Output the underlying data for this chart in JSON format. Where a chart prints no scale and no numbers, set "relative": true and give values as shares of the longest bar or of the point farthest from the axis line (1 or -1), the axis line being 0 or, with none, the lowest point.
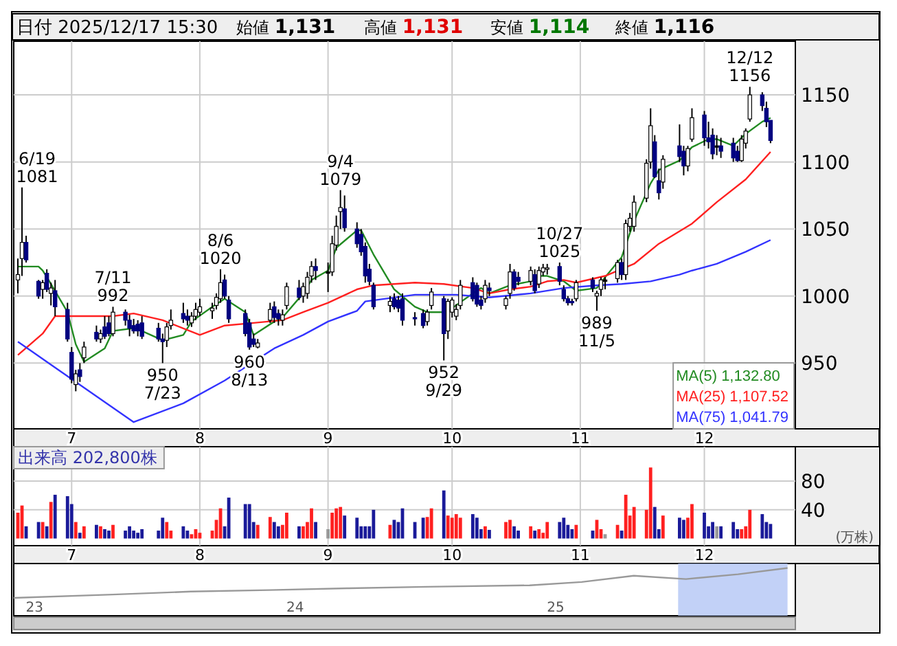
{
  "chart_data": [
    {
      "type": "candlestick",
      "title": "日付 2025/12/17 15:30",
      "annotations": [
        "始値 1,131",
        "高値 1,131",
        "安値 1,114",
        "終値 1,116",
        {
          "text": "6/19\n1081",
          "x": "2025-06-19",
          "y": 1081
        },
        {
          "text": "7/11\n992",
          "x": "2025-07-11",
          "y": 992
        },
        {
          "text": "950\n7/23",
          "x": "2025-07-23",
          "y": 950
        },
        {
          "text": "8/6\n1020",
          "x": "2025-08-06",
          "y": 1020
        },
        {
          "text": "960\n8/13",
          "x": "2025-08-13",
          "y": 960
        },
        {
          "text": "9/4\n1079",
          "x": "2025-09-04",
          "y": 1079
        },
        {
          "text": "952\n9/29",
          "x": "2025-09-29",
          "y": 952
        },
        {
          "text": "10/27\n1025",
          "x": "2025-10-27",
          "y": 1025
        },
        {
          "text": "989\n11/5",
          "x": "2025-11-05",
          "y": 989
        },
        {
          "text": "12/12\n1156",
          "x": "2025-12-12",
          "y": 1156
        }
      ],
      "x": [
        "2025-06-18",
        "2025-06-19",
        "2025-06-20",
        "2025-06-23",
        "2025-06-24",
        "2025-06-25",
        "2025-06-26",
        "2025-06-27",
        "2025-06-30",
        "2025-07-01",
        "2025-07-02",
        "2025-07-03",
        "2025-07-04",
        "2025-07-07",
        "2025-07-08",
        "2025-07-09",
        "2025-07-10",
        "2025-07-11",
        "2025-07-14",
        "2025-07-15",
        "2025-07-16",
        "2025-07-17",
        "2025-07-18",
        "2025-07-22",
        "2025-07-23",
        "2025-07-24",
        "2025-07-25",
        "2025-07-28",
        "2025-07-29",
        "2025-07-30",
        "2025-07-31",
        "2025-08-01",
        "2025-08-04",
        "2025-08-05",
        "2025-08-06",
        "2025-08-07",
        "2025-08-08",
        "2025-08-12",
        "2025-08-13",
        "2025-08-14",
        "2025-08-15",
        "2025-08-18",
        "2025-08-19",
        "2025-08-20",
        "2025-08-21",
        "2025-08-22",
        "2025-08-25",
        "2025-08-26",
        "2025-08-27",
        "2025-08-28",
        "2025-08-29",
        "2025-09-01",
        "2025-09-02",
        "2025-09-03",
        "2025-09-04",
        "2025-09-05",
        "2025-09-08",
        "2025-09-09",
        "2025-09-10",
        "2025-09-11",
        "2025-09-12",
        "2025-09-16",
        "2025-09-17",
        "2025-09-18",
        "2025-09-19",
        "2025-09-22",
        "2025-09-24",
        "2025-09-25",
        "2025-09-26",
        "2025-09-29",
        "2025-09-30",
        "2025-10-01",
        "2025-10-02",
        "2025-10-03",
        "2025-10-06",
        "2025-10-07",
        "2025-10-08",
        "2025-10-09",
        "2025-10-10",
        "2025-10-14",
        "2025-10-15",
        "2025-10-16",
        "2025-10-17",
        "2025-10-20",
        "2025-10-21",
        "2025-10-22",
        "2025-10-23",
        "2025-10-24",
        "2025-10-27",
        "2025-10-28",
        "2025-10-29",
        "2025-10-30",
        "2025-10-31",
        "2025-11-04",
        "2025-11-05",
        "2025-11-06",
        "2025-11-07",
        "2025-11-10",
        "2025-11-11",
        "2025-11-12",
        "2025-11-13",
        "2025-11-14",
        "2025-11-17",
        "2025-11-18",
        "2025-11-19",
        "2025-11-20",
        "2025-11-21",
        "2025-11-25",
        "2025-11-26",
        "2025-11-27",
        "2025-11-28",
        "2025-12-01",
        "2025-12-02",
        "2025-12-03",
        "2025-12-04",
        "2025-12-05",
        "2025-12-08",
        "2025-12-09",
        "2025-12-10",
        "2025-12-11",
        "2025-12-12",
        "2025-12-15",
        "2025-12-16",
        "2025-12-17"
      ],
      "ohlc": [
        [
          1012,
          1028,
          1002,
          1016
        ],
        [
          1028,
          1081,
          1015,
          1040
        ],
        [
          1040,
          1045,
          1025,
          1027
        ],
        [
          1011,
          1012,
          998,
          1000
        ],
        [
          1005,
          1012,
          998,
          1010
        ],
        [
          1017,
          1020,
          1003,
          1005
        ],
        [
          1002,
          1010,
          993,
          1006
        ],
        [
          1004,
          1012,
          985,
          992
        ],
        [
          990,
          995,
          966,
          968
        ],
        [
          958,
          962,
          935,
          938
        ],
        [
          934,
          945,
          929,
          942
        ],
        [
          945,
          950,
          936,
          940
        ],
        [
          954,
          966,
          950,
          962
        ],
        [
          973,
          978,
          966,
          968
        ],
        [
          968,
          975,
          965,
          972
        ],
        [
          977,
          985,
          968,
          970
        ],
        [
          980,
          985,
          970,
          972
        ],
        [
          972,
          992,
          970,
          988
        ],
        [
          988,
          990,
          978,
          982
        ],
        [
          982,
          986,
          970,
          976
        ],
        [
          978,
          983,
          972,
          974
        ],
        [
          979,
          982,
          970,
          974
        ],
        [
          980,
          985,
          968,
          970
        ],
        [
          976,
          980,
          966,
          968
        ],
        [
          968,
          972,
          950,
          966
        ],
        [
          967,
          980,
          962,
          977
        ],
        [
          978,
          990,
          975,
          982
        ],
        [
          987,
          995,
          980,
          983
        ],
        [
          985,
          990,
          978,
          982
        ],
        [
          980,
          988,
          977,
          985
        ],
        [
          985,
          995,
          982,
          990
        ],
        [
          988,
          998,
          985,
          992
        ],
        [
          989,
          995,
          983,
          991
        ],
        [
          993,
          1002,
          990,
          999
        ],
        [
          998,
          1020,
          995,
          1010
        ],
        [
          1012,
          1016,
          998,
          1000
        ],
        [
          997,
          1000,
          980,
          983
        ],
        [
          987,
          990,
          970,
          972
        ],
        [
          980,
          983,
          960,
          962
        ],
        [
          968,
          972,
          962,
          964
        ],
        [
          962,
          968,
          961,
          965
        ],
        [
          982,
          995,
          980,
          990
        ],
        [
          992,
          996,
          980,
          984
        ],
        [
          987,
          990,
          978,
          983
        ],
        [
          982,
          990,
          978,
          986
        ],
        [
          993,
          1010,
          990,
          1007
        ],
        [
          1006,
          1012,
          997,
          999
        ],
        [
          1000,
          1010,
          995,
          1007
        ],
        [
          1002,
          1018,
          998,
          1014
        ],
        [
          1015,
          1026,
          1010,
          1022
        ],
        [
          1022,
          1028,
          1012,
          1019
        ],
        [
          1018,
          1025,
          1003,
          1018
        ],
        [
          1018,
          1045,
          1015,
          1039
        ],
        [
          1038,
          1060,
          1034,
          1052
        ],
        [
          1063,
          1079,
          1050,
          1066
        ],
        [
          1065,
          1075,
          1048,
          1051
        ],
        [
          1050,
          1055,
          1036,
          1039
        ],
        [
          1046,
          1050,
          1030,
          1033
        ],
        [
          1037,
          1040,
          1010,
          1015
        ],
        [
          1020,
          1024,
          1008,
          1011
        ],
        [
          1008,
          1010,
          990,
          992
        ],
        [
          993,
          1000,
          988,
          996
        ],
        [
          998,
          1002,
          990,
          992
        ],
        [
          997,
          1000,
          988,
          991
        ],
        [
          998,
          1002,
          978,
          982
        ],
        [
          984,
          988,
          978,
          983
        ],
        [
          987,
          990,
          976,
          978
        ],
        [
          981,
          990,
          978,
          988
        ],
        [
          993,
          1006,
          990,
          1003
        ],
        [
          998,
          1000,
          952,
          972
        ],
        [
          974,
          998,
          968,
          996
        ],
        [
          988,
          999,
          984,
          997
        ],
        [
          985,
          994,
          982,
          990
        ],
        [
          993,
          1012,
          990,
          1008
        ],
        [
          1010,
          1014,
          996,
          998
        ],
        [
          1008,
          1010,
          992,
          994
        ],
        [
          997,
          1000,
          990,
          993
        ],
        [
          998,
          1012,
          995,
          1008
        ],
        [
          1006,
          1010,
          1000,
          1004
        ],
        [
          993,
          1000,
          990,
          998
        ],
        [
          1002,
          1024,
          998,
          1018
        ],
        [
          1018,
          1020,
          1004,
          1006
        ],
        [
          1014,
          1018,
          1008,
          1011
        ],
        [
          1011,
          1022,
          1008,
          1019
        ],
        [
          1016,
          1020,
          1002,
          1004
        ],
        [
          1009,
          1022,
          1006,
          1019
        ],
        [
          1018,
          1024,
          1015,
          1021
        ],
        [
          1020,
          1024,
          1016,
          1021
        ],
        [
          1022,
          1025,
          1008,
          1011
        ],
        [
          1005,
          1008,
          996,
          998
        ],
        [
          998,
          1000,
          993,
          995
        ],
        [
          996,
          998,
          993,
          995
        ],
        [
          998,
          1012,
          996,
          1010
        ],
        [
          1012,
          1014,
          1003,
          1006
        ],
        [
          1000,
          1004,
          989,
          1002
        ],
        [
          1005,
          1014,
          1000,
          1012
        ],
        [
          1012,
          1014,
          1005,
          1012
        ],
        [
          1013,
          1027,
          1010,
          1025
        ],
        [
          1025,
          1028,
          1012,
          1016
        ],
        [
          1016,
          1057,
          1012,
          1054
        ],
        [
          1052,
          1062,
          1048,
          1058
        ],
        [
          1052,
          1075,
          1048,
          1070
        ],
        [
          1073,
          1102,
          1070,
          1099
        ],
        [
          1100,
          1140,
          1095,
          1127
        ],
        [
          1115,
          1120,
          1088,
          1089
        ],
        [
          1086,
          1095,
          1072,
          1077
        ],
        [
          1085,
          1105,
          1080,
          1102
        ],
        [
          1112,
          1128,
          1100,
          1104
        ],
        [
          1108,
          1112,
          1090,
          1097
        ],
        [
          1097,
          1112,
          1093,
          1110
        ],
        [
          1117,
          1140,
          1115,
          1133
        ],
        [
          1135,
          1138,
          1112,
          1118
        ],
        [
          1118,
          1130,
          1110,
          1115
        ],
        [
          1120,
          1125,
          1102,
          1106
        ],
        [
          1112,
          1120,
          1105,
          1112
        ],
        [
          1112,
          1118,
          1103,
          1108
        ],
        [
          1114,
          1118,
          1100,
          1103
        ],
        [
          1108,
          1112,
          1100,
          1101
        ],
        [
          1101,
          1120,
          1100,
          1117
        ],
        [
          1114,
          1125,
          1110,
          1123
        ],
        [
          1132,
          1156,
          1130,
          1150
        ],
        [
          1150,
          1152,
          1138,
          1142
        ],
        [
          1140,
          1145,
          1126,
          1130
        ],
        [
          1131,
          1131,
          1114,
          1116
        ]
      ],
      "series": [
        {
          "type": "line",
          "name": "MA(5) 1,132.80",
          "color": "#228b22",
          "x": [
            "2025-06-18",
            "2025-06-23",
            "2025-06-24",
            "2025-06-26",
            "2025-06-30",
            "2025-07-02",
            "2025-07-04",
            "2025-07-09",
            "2025-07-11",
            "2025-07-16",
            "2025-07-18",
            "2025-07-23",
            "2025-07-28",
            "2025-07-30",
            "2025-08-04",
            "2025-08-07",
            "2025-08-12",
            "2025-08-14",
            "2025-08-19",
            "2025-08-21",
            "2025-08-26",
            "2025-08-28",
            "2025-09-01",
            "2025-09-03",
            "2025-09-08",
            "2025-09-09",
            "2025-09-12",
            "2025-09-17",
            "2025-09-22",
            "2025-09-25",
            "2025-09-29",
            "2025-10-01",
            "2025-10-06",
            "2025-10-08",
            "2025-10-10",
            "2025-10-15",
            "2025-10-20",
            "2025-10-22",
            "2025-10-24",
            "2025-10-28",
            "2025-10-31",
            "2025-11-05",
            "2025-11-07",
            "2025-11-11",
            "2025-11-14",
            "2025-11-18",
            "2025-11-20",
            "2025-11-25",
            "2025-11-28",
            "2025-12-02",
            "2025-12-04",
            "2025-12-08",
            "2025-12-11",
            "2025-12-15",
            "2025-12-17"
          ],
          "values": [
            1022,
            1022,
            1019,
            1009,
            988,
            964,
            951,
            961,
            974,
            976,
            974,
            967,
            971,
            981,
            992,
            998,
            988,
            971,
            981,
            984,
            1002,
            1012,
            1019,
            1036,
            1049,
            1049,
            1031,
            1005,
            992,
            988,
            988,
            991,
            1002,
            1006,
            1002,
            1008,
            1011,
            1015,
            1015,
            1011,
            1004,
            1006,
            1014,
            1029,
            1056,
            1084,
            1094,
            1101,
            1111,
            1117,
            1117,
            1112,
            1121,
            1130,
            1132.8
          ]
        },
        {
          "type": "line",
          "name": "MA(25) 1,107.52",
          "color": "#ff2020",
          "x": [
            "2025-06-18",
            "2025-06-24",
            "2025-06-27",
            "2025-07-04",
            "2025-07-11",
            "2025-07-16",
            "2025-07-23",
            "2025-08-01",
            "2025-08-07",
            "2025-08-14",
            "2025-08-21",
            "2025-08-26",
            "2025-09-01",
            "2025-09-08",
            "2025-09-12",
            "2025-09-22",
            "2025-09-29",
            "2025-10-06",
            "2025-10-10",
            "2025-10-15",
            "2025-10-20",
            "2025-10-24",
            "2025-10-28",
            "2025-10-31",
            "2025-11-07",
            "2025-11-14",
            "2025-11-20",
            "2025-11-28",
            "2025-12-04",
            "2025-12-11",
            "2025-12-17"
          ],
          "values": [
            956,
            972,
            985,
            985,
            985,
            987,
            982,
            971,
            978,
            980,
            982,
            988,
            995,
            1005,
            1008,
            1010,
            1009,
            1006,
            1002,
            1005,
            1007,
            1011,
            1012,
            1010,
            1015,
            1024,
            1039,
            1054,
            1070,
            1087,
            1107.52
          ]
        },
        {
          "type": "line",
          "name": "MA(75) 1,041.79",
          "color": "#3333ff",
          "x": [
            "2025-06-18",
            "2025-06-25",
            "2025-07-16",
            "2025-07-28",
            "2025-08-07",
            "2025-08-19",
            "2025-08-26",
            "2025-09-01",
            "2025-09-08",
            "2025-09-10",
            "2025-09-22",
            "2025-10-02",
            "2025-10-10",
            "2025-10-20",
            "2025-10-28",
            "2025-11-05",
            "2025-11-11",
            "2025-11-18",
            "2025-11-25",
            "2025-11-28",
            "2025-12-04",
            "2025-12-11",
            "2025-12-17"
          ],
          "values": [
            966,
            951,
            906,
            920,
            937,
            961,
            971,
            981,
            989,
            996,
            1001,
            1001,
            999,
            1002,
            1006,
            1008,
            1009,
            1011,
            1016,
            1019,
            1024,
            1033,
            1041.79
          ]
        }
      ],
      "xlim": [
        "2025-06-17",
        "2025-12-23"
      ],
      "xticks": [
        {
          "value": "2025-07-01",
          "label": "7"
        },
        {
          "value": "2025-08-01",
          "label": "8"
        },
        {
          "value": "2025-09-01",
          "label": "9"
        },
        {
          "value": "2025-10-01",
          "label": "10"
        },
        {
          "value": "2025-11-01",
          "label": "11"
        },
        {
          "value": "2025-12-01",
          "label": "12"
        }
      ],
      "ylim": [
        901,
        1190
      ],
      "yticks": [
        950,
        1000,
        1050,
        1100,
        1150
      ],
      "grid": true,
      "legend": "bottom right"
    },
    {
      "type": "bar",
      "annotations": [
        "出来高 202,800株"
      ],
      "ylabel": "(万株)",
      "x": [
        "2025-06-18",
        "2025-06-19",
        "2025-06-20",
        "2025-06-23",
        "2025-06-24",
        "2025-06-25",
        "2025-06-26",
        "2025-06-27",
        "2025-06-30",
        "2025-07-01",
        "2025-07-02",
        "2025-07-03",
        "2025-07-04",
        "2025-07-07",
        "2025-07-08",
        "2025-07-09",
        "2025-07-10",
        "2025-07-11",
        "2025-07-14",
        "2025-07-15",
        "2025-07-16",
        "2025-07-17",
        "2025-07-18",
        "2025-07-22",
        "2025-07-23",
        "2025-07-24",
        "2025-07-25",
        "2025-07-28",
        "2025-07-29",
        "2025-07-30",
        "2025-07-31",
        "2025-08-01",
        "2025-08-04",
        "2025-08-05",
        "2025-08-06",
        "2025-08-07",
        "2025-08-08",
        "2025-08-12",
        "2025-08-13",
        "2025-08-14",
        "2025-08-15",
        "2025-08-18",
        "2025-08-19",
        "2025-08-20",
        "2025-08-21",
        "2025-08-22",
        "2025-08-25",
        "2025-08-26",
        "2025-08-27",
        "2025-08-28",
        "2025-08-29",
        "2025-09-01",
        "2025-09-02",
        "2025-09-03",
        "2025-09-04",
        "2025-09-05",
        "2025-09-08",
        "2025-09-09",
        "2025-09-10",
        "2025-09-11",
        "2025-09-12",
        "2025-09-16",
        "2025-09-17",
        "2025-09-18",
        "2025-09-19",
        "2025-09-22",
        "2025-09-24",
        "2025-09-25",
        "2025-09-26",
        "2025-09-29",
        "2025-09-30",
        "2025-10-01",
        "2025-10-02",
        "2025-10-03",
        "2025-10-06",
        "2025-10-07",
        "2025-10-08",
        "2025-10-09",
        "2025-10-10",
        "2025-10-14",
        "2025-10-15",
        "2025-10-16",
        "2025-10-17",
        "2025-10-20",
        "2025-10-21",
        "2025-10-22",
        "2025-10-23",
        "2025-10-24",
        "2025-10-27",
        "2025-10-28",
        "2025-10-29",
        "2025-10-30",
        "2025-10-31",
        "2025-11-04",
        "2025-11-05",
        "2025-11-06",
        "2025-11-07",
        "2025-11-10",
        "2025-11-11",
        "2025-11-12",
        "2025-11-13",
        "2025-11-14",
        "2025-11-17",
        "2025-11-18",
        "2025-11-19",
        "2025-11-20",
        "2025-11-21",
        "2025-11-25",
        "2025-11-26",
        "2025-11-27",
        "2025-11-28",
        "2025-12-01",
        "2025-12-02",
        "2025-12-03",
        "2025-12-04",
        "2025-12-05",
        "2025-12-08",
        "2025-12-09",
        "2025-12-10",
        "2025-12-11",
        "2025-12-12",
        "2025-12-15",
        "2025-12-16",
        "2025-12-17"
      ],
      "values": [
        36,
        46,
        17,
        23,
        23,
        17,
        51,
        61,
        59,
        48,
        23,
        8,
        17,
        19,
        17,
        13,
        11,
        19,
        11,
        17,
        11,
        8,
        13,
        11,
        29,
        23,
        11,
        17,
        11,
        6,
        13,
        8,
        11,
        26,
        42,
        17,
        57,
        48,
        48,
        23,
        19,
        30,
        23,
        17,
        19,
        36,
        17,
        17,
        23,
        42,
        23,
        13,
        36,
        42,
        44,
        32,
        29,
        17,
        17,
        17,
        40,
        19,
        26,
        23,
        42,
        23,
        29,
        30,
        42,
        67,
        32,
        29,
        34,
        29,
        34,
        29,
        13,
        17,
        12,
        23,
        26,
        17,
        11,
        17,
        11,
        13,
        8,
        23,
        23,
        29,
        19,
        13,
        19,
        11,
        26,
        13,
        6,
        19,
        11,
        61,
        32,
        44,
        40,
        99,
        44,
        13,
        32,
        29,
        26,
        29,
        48,
        36,
        17,
        23,
        17,
        17,
        23,
        13,
        13,
        17,
        40,
        34,
        23,
        20.28
      ],
      "colors": [
        "#ff2020",
        "#ff2020",
        "#1a1a99",
        "#1a1a99",
        "#ff2020",
        "#1a1a99",
        "#ff2020",
        "#1a1a99",
        "#1a1a99",
        "#1a1a99",
        "#ff2020",
        "#1a1a99",
        "#ff2020",
        "#1a1a99",
        "#ff2020",
        "#1a1a99",
        "#1a1a99",
        "#ff2020",
        "#1a1a99",
        "#1a1a99",
        "#1a1a99",
        "#1a1a99",
        "#1a1a99",
        "#1a1a99",
        "#1a1a99",
        "#ff2020",
        "#ff2020",
        "#1a1a99",
        "#1a1a99",
        "#ff2020",
        "#ff2020",
        "#ff2020",
        "#ff2020",
        "#ff2020",
        "#ff2020",
        "#1a1a99",
        "#1a1a99",
        "#1a1a99",
        "#1a1a99",
        "#1a1a99",
        "#ff2020",
        "#ff2020",
        "#1a1a99",
        "#1a1a99",
        "#ff2020",
        "#ff2020",
        "#1a1a99",
        "#ff2020",
        "#ff2020",
        "#ff2020",
        "#1a1a99",
        "#999999",
        "#ff2020",
        "#ff2020",
        "#ff2020",
        "#1a1a99",
        "#1a1a99",
        "#1a1a99",
        "#1a1a99",
        "#1a1a99",
        "#1a1a99",
        "#ff2020",
        "#1a1a99",
        "#1a1a99",
        "#1a1a99",
        "#1a1a99",
        "#1a1a99",
        "#ff2020",
        "#ff2020",
        "#1a1a99",
        "#ff2020",
        "#ff2020",
        "#ff2020",
        "#ff2020",
        "#1a1a99",
        "#1a1a99",
        "#1a1a99",
        "#ff2020",
        "#1a1a99",
        "#ff2020",
        "#ff2020",
        "#1a1a99",
        "#1a1a99",
        "#ff2020",
        "#1a1a99",
        "#ff2020",
        "#ff2020",
        "#ff2020",
        "#1a1a99",
        "#1a1a99",
        "#1a1a99",
        "#1a1a99",
        "#ff2020",
        "#1a1a99",
        "#ff2020",
        "#ff2020",
        "#999999",
        "#ff2020",
        "#1a1a99",
        "#ff2020",
        "#ff2020",
        "#ff2020",
        "#ff2020",
        "#ff2020",
        "#1a1a99",
        "#1a1a99",
        "#ff2020",
        "#1a1a99",
        "#1a1a99",
        "#ff2020",
        "#ff2020",
        "#1a1a99",
        "#1a1a99",
        "#1a1a99",
        "#999999",
        "#1a1a99",
        "#1a1a99",
        "#1a1a99",
        "#ff2020",
        "#ff2020",
        "#ff2020",
        "#1a1a99",
        "#1a1a99",
        "#1a1a99"
      ],
      "xlim": [
        "2025-06-17",
        "2025-12-23"
      ],
      "xticks": [
        {
          "value": "2025-07-01",
          "label": "7"
        },
        {
          "value": "2025-08-01",
          "label": "8"
        },
        {
          "value": "2025-09-01",
          "label": "9"
        },
        {
          "value": "2025-10-01",
          "label": "10"
        },
        {
          "value": "2025-11-01",
          "label": "11"
        },
        {
          "value": "2025-12-01",
          "label": "12"
        }
      ],
      "ylim": [
        -10,
        128
      ],
      "yticks": [
        40,
        80
      ],
      "grid": true
    },
    {
      "type": "line",
      "relative": true,
      "x": [
        22.92,
        23.3,
        23.6,
        23.9,
        24.2,
        24.5,
        24.9,
        25.1,
        25.3,
        25.5,
        25.7,
        25.89
      ],
      "values": [
        0,
        0.11,
        0.21,
        0.26,
        0.32,
        0.37,
        0.42,
        0.53,
        0.74,
        0.63,
        0.79,
        1
      ],
      "color": "#999999",
      "bands": [
        {
          "axis": "x",
          "from": 25.47,
          "to": 25.89,
          "color": "#b3c6f5"
        }
      ],
      "xlim": [
        22.92,
        25.92
      ],
      "xticks": [
        23,
        24,
        25
      ]
    }
  ]
}
